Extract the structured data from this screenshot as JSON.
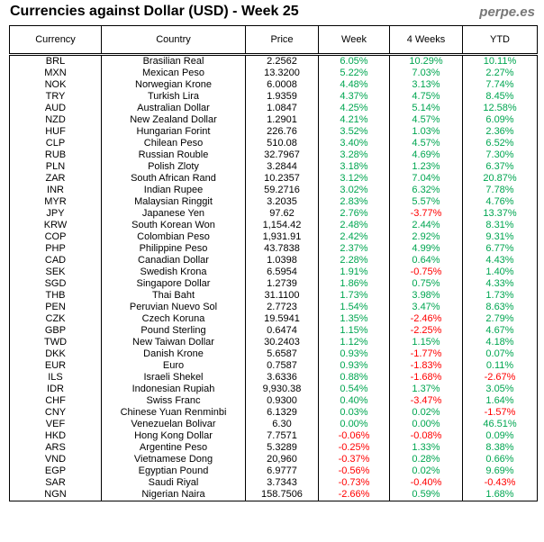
{
  "header": {
    "title": "Currencies against Dollar (USD) - Week 25",
    "brand": "perpe.es"
  },
  "table": {
    "columns": [
      "Currency",
      "Country",
      "Price",
      "Week",
      "4 Weeks",
      "YTD"
    ],
    "rows": [
      [
        "BRL",
        "Brasilian Real",
        "2.2562",
        "6.05%",
        "10.29%",
        "10.11%"
      ],
      [
        "MXN",
        "Mexican Peso",
        "13.3200",
        "5.22%",
        "7.03%",
        "2.27%"
      ],
      [
        "NOK",
        "Norwegian Krone",
        "6.0008",
        "4.48%",
        "3.13%",
        "7.74%"
      ],
      [
        "TRY",
        "Turkish Lira",
        "1.9359",
        "4.37%",
        "4.75%",
        "8.45%"
      ],
      [
        "AUD",
        "Australian Dollar",
        "1.0847",
        "4.25%",
        "5.14%",
        "12.58%"
      ],
      [
        "NZD",
        "New Zealand Dollar",
        "1.2901",
        "4.21%",
        "4.57%",
        "6.09%"
      ],
      [
        "HUF",
        "Hungarian Forint",
        "226.76",
        "3.52%",
        "1.03%",
        "2.36%"
      ],
      [
        "CLP",
        "Chilean Peso",
        "510.08",
        "3.40%",
        "4.57%",
        "6.52%"
      ],
      [
        "RUB",
        "Russian Rouble",
        "32.7967",
        "3.28%",
        "4.69%",
        "7.30%"
      ],
      [
        "PLN",
        "Polish Zloty",
        "3.2844",
        "3.18%",
        "1.23%",
        "6.37%"
      ],
      [
        "ZAR",
        "South African Rand",
        "10.2357",
        "3.12%",
        "7.04%",
        "20.87%"
      ],
      [
        "INR",
        "Indian Rupee",
        "59.2716",
        "3.02%",
        "6.32%",
        "7.78%"
      ],
      [
        "MYR",
        "Malaysian Ringgit",
        "3.2035",
        "2.83%",
        "5.57%",
        "4.76%"
      ],
      [
        "JPY",
        "Japanese Yen",
        "97.62",
        "2.76%",
        "-3.77%",
        "13.37%"
      ],
      [
        "KRW",
        "South Korean Won",
        "1,154.42",
        "2.48%",
        "2.44%",
        "8.31%"
      ],
      [
        "COP",
        "Colombian Peso",
        "1,931.91",
        "2.42%",
        "2.92%",
        "9.31%"
      ],
      [
        "PHP",
        "Philippine Peso",
        "43.7838",
        "2.37%",
        "4.99%",
        "6.77%"
      ],
      [
        "CAD",
        "Canadian Dollar",
        "1.0398",
        "2.28%",
        "0.64%",
        "4.43%"
      ],
      [
        "SEK",
        "Swedish Krona",
        "6.5954",
        "1.91%",
        "-0.75%",
        "1.40%"
      ],
      [
        "SGD",
        "Singapore Dollar",
        "1.2739",
        "1.86%",
        "0.75%",
        "4.33%"
      ],
      [
        "THB",
        "Thai Baht",
        "31.1100",
        "1.73%",
        "3.98%",
        "1.73%"
      ],
      [
        "PEN",
        "Peruvian Nuevo Sol",
        "2.7723",
        "1.54%",
        "3.47%",
        "8.63%"
      ],
      [
        "CZK",
        "Czech Koruna",
        "19.5941",
        "1.35%",
        "-2.46%",
        "2.79%"
      ],
      [
        "GBP",
        "Pound Sterling",
        "0.6474",
        "1.15%",
        "-2.25%",
        "4.67%"
      ],
      [
        "TWD",
        "New Taiwan Dollar",
        "30.2403",
        "1.12%",
        "1.15%",
        "4.18%"
      ],
      [
        "DKK",
        "Danish Krone",
        "5.6587",
        "0.93%",
        "-1.77%",
        "0.07%"
      ],
      [
        "EUR",
        "Euro",
        "0.7587",
        "0.93%",
        "-1.83%",
        "0.11%"
      ],
      [
        "ILS",
        "Israeli Shekel",
        "3.6336",
        "0.88%",
        "-1.68%",
        "-2.67%"
      ],
      [
        "IDR",
        "Indonesian Rupiah",
        "9,930.38",
        "0.54%",
        "1.37%",
        "3.05%"
      ],
      [
        "CHF",
        "Swiss Franc",
        "0.9300",
        "0.40%",
        "-3.47%",
        "1.64%"
      ],
      [
        "CNY",
        "Chinese Yuan Renminbi",
        "6.1329",
        "0.03%",
        "0.02%",
        "-1.57%"
      ],
      [
        "VEF",
        "Venezuelan Bolivar",
        "6.30",
        "0.00%",
        "0.00%",
        "46.51%"
      ],
      [
        "HKD",
        "Hong Kong Dollar",
        "7.7571",
        "-0.06%",
        "-0.08%",
        "0.09%"
      ],
      [
        "ARS",
        "Argentine Peso",
        "5.3289",
        "-0.25%",
        "1.33%",
        "8.38%"
      ],
      [
        "VND",
        "Vietnamese Dong",
        "20,960",
        "-0.37%",
        "0.28%",
        "0.66%"
      ],
      [
        "EGP",
        "Egyptian Pound",
        "6.9777",
        "-0.56%",
        "0.02%",
        "9.69%"
      ],
      [
        "SAR",
        "Saudi Riyal",
        "3.7343",
        "-0.73%",
        "-0.40%",
        "-0.43%"
      ],
      [
        "NGN",
        "Nigerian Naira",
        "158.7506",
        "-2.66%",
        "0.59%",
        "1.68%"
      ]
    ]
  }
}
